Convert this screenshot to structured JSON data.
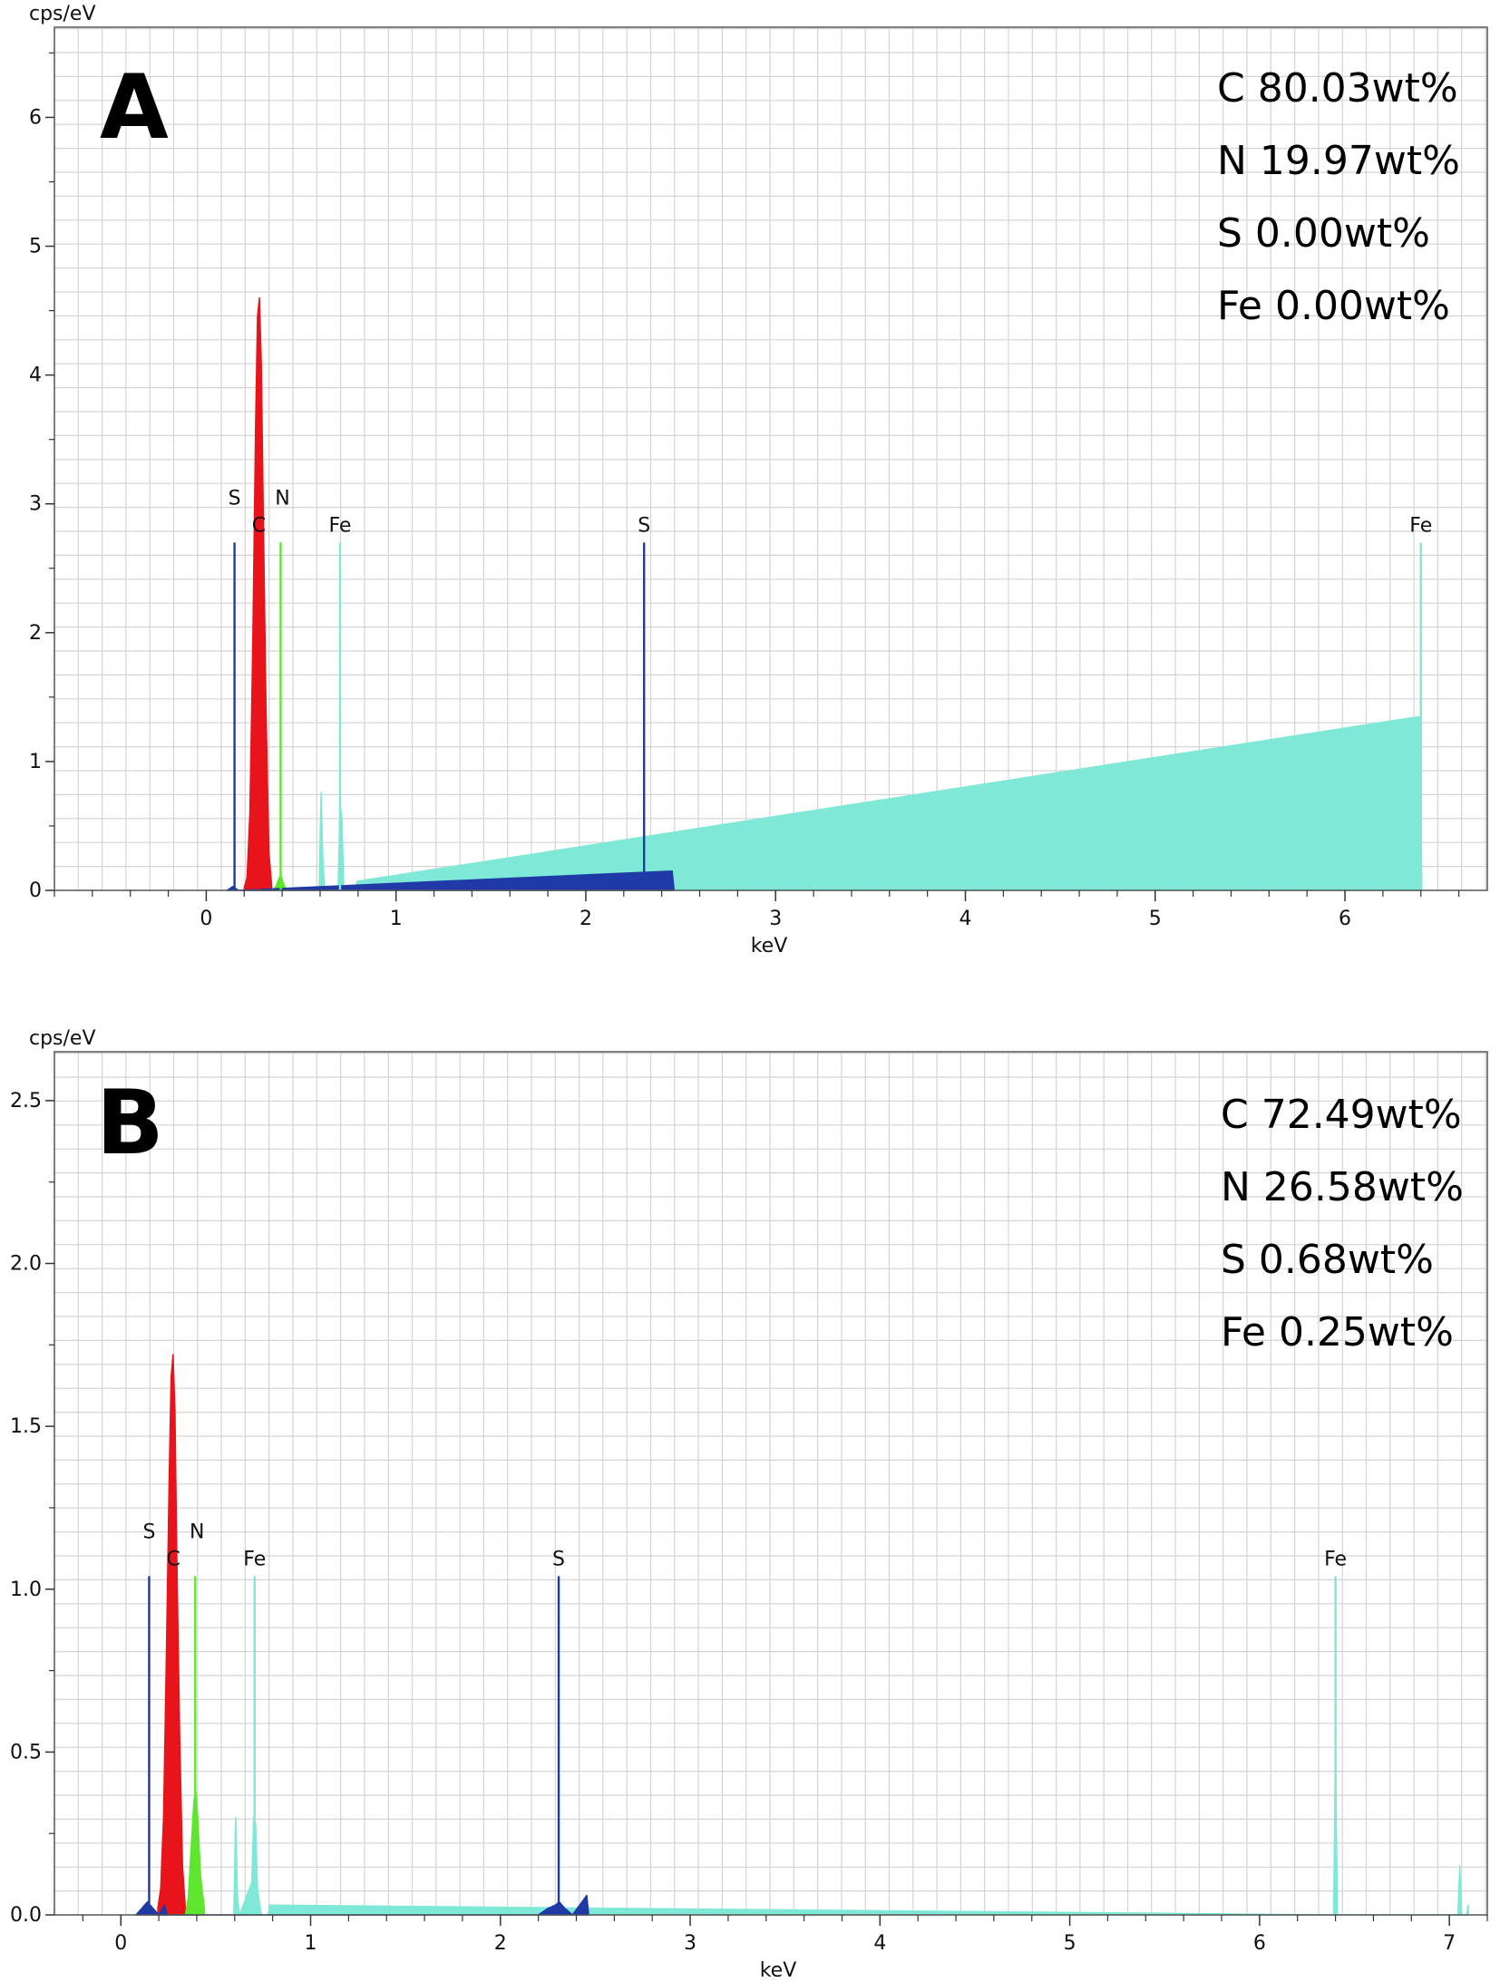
{
  "chart_data": [
    {
      "type": "line",
      "panel_label": "A",
      "ylabel": "cps/eV",
      "xlabel": "keV",
      "xlim": [
        -0.8,
        6.75
      ],
      "ylim": [
        0,
        6.7
      ],
      "xticks": [
        0,
        1,
        2,
        3,
        4,
        5,
        6
      ],
      "xtick_labels": [
        "0",
        "1",
        "2",
        "3",
        "4",
        "5",
        "6"
      ],
      "yticks": [
        0,
        1,
        2,
        3,
        4,
        5,
        6
      ],
      "ytick_labels": [
        "0",
        "1",
        "2",
        "3",
        "4",
        "5",
        "6"
      ],
      "grid": true,
      "composition": [
        "C 80.03wt%",
        "N 19.97wt%",
        "S 0.00wt%",
        "Fe 0.00wt%"
      ],
      "element_markers": [
        {
          "label": "S",
          "x": 0.149,
          "height": 2.7,
          "color": "#1f3aa6"
        },
        {
          "label": "C",
          "x": 0.277,
          "height": 2.7,
          "color": "#e8141b"
        },
        {
          "label": "N",
          "x": 0.392,
          "height": 2.7,
          "color": "#5ee62f"
        },
        {
          "label": "Fe",
          "x": 0.705,
          "height": 2.7,
          "color": "#7fe8d6"
        },
        {
          "label": "S",
          "x": 2.307,
          "height": 2.7,
          "color": "#1f3aa6"
        },
        {
          "label": "Fe",
          "x": 6.4,
          "height": 2.7,
          "color": "#7fe8d6"
        }
      ],
      "series": [
        {
          "name": "C",
          "color": "#e8141b",
          "x": [
            0.2,
            0.215,
            0.23,
            0.245,
            0.26,
            0.27,
            0.28,
            0.29,
            0.3,
            0.315,
            0.33,
            0.345
          ],
          "y": [
            0.02,
            0.1,
            0.6,
            1.9,
            3.6,
            4.45,
            4.6,
            4.1,
            3.0,
            1.4,
            0.3,
            0.03
          ]
        },
        {
          "name": "N",
          "color": "#5ee62f",
          "x": [
            0.355,
            0.37,
            0.385,
            0.395,
            0.405,
            0.42
          ],
          "y": [
            0.0,
            0.04,
            0.1,
            0.11,
            0.06,
            0.01
          ]
        },
        {
          "name": "Fe",
          "color": "#7fe8d6",
          "x": [
            0.595,
            0.605,
            0.615,
            0.625,
            0.695,
            0.705,
            0.715,
            0.725,
            0.785,
            0.795,
            6.395,
            6.405
          ],
          "y": [
            0.0,
            0.76,
            0.22,
            0.0,
            0.0,
            0.68,
            0.55,
            0.0,
            0.0,
            0.07,
            1.35,
            0.0
          ]
        },
        {
          "name": "S",
          "color": "#1f3aa6",
          "x": [
            0.11,
            0.14,
            0.17,
            2.455,
            2.465
          ],
          "y": [
            0.0,
            0.03,
            0.0,
            0.15,
            0.0
          ]
        }
      ]
    },
    {
      "type": "line",
      "panel_label": "B",
      "ylabel": "cps/eV",
      "xlabel": "keV",
      "xlim": [
        -0.35,
        7.2
      ],
      "ylim": [
        0,
        2.65
      ],
      "xticks": [
        0,
        1,
        2,
        3,
        4,
        5,
        6,
        7
      ],
      "xtick_labels": [
        "0",
        "1",
        "2",
        "3",
        "4",
        "5",
        "6",
        "7"
      ],
      "yticks": [
        0,
        0.5,
        1.0,
        1.5,
        2.0,
        2.5
      ],
      "ytick_labels": [
        "0.0",
        "0.5",
        "1.0",
        "1.5",
        "2.0",
        "2.5"
      ],
      "grid": true,
      "composition": [
        "C 72.49wt%",
        "N 26.58wt%",
        "S 0.68wt%",
        "Fe 0.25wt%"
      ],
      "element_markers": [
        {
          "label": "S",
          "x": 0.149,
          "height": 1.04,
          "color": "#1f3aa6"
        },
        {
          "label": "C",
          "x": 0.277,
          "height": 1.04,
          "color": "#e8141b"
        },
        {
          "label": "N",
          "x": 0.392,
          "height": 1.04,
          "color": "#5ee62f"
        },
        {
          "label": "Fe",
          "x": 0.705,
          "height": 1.04,
          "color": "#7fe8d6"
        },
        {
          "label": "S",
          "x": 2.307,
          "height": 1.04,
          "color": "#1f3aa6"
        },
        {
          "label": "Fe",
          "x": 6.4,
          "height": 1.04,
          "color": "#7fe8d6"
        }
      ],
      "series": [
        {
          "name": "C",
          "color": "#e8141b",
          "x": [
            0.195,
            0.21,
            0.225,
            0.24,
            0.255,
            0.265,
            0.275,
            0.285,
            0.295,
            0.31,
            0.325,
            0.34
          ],
          "y": [
            0.02,
            0.08,
            0.3,
            0.8,
            1.35,
            1.65,
            1.72,
            1.55,
            1.1,
            0.55,
            0.15,
            0.02
          ]
        },
        {
          "name": "N",
          "color": "#5ee62f",
          "x": [
            0.34,
            0.355,
            0.37,
            0.385,
            0.395,
            0.405,
            0.42,
            0.44
          ],
          "y": [
            0.0,
            0.05,
            0.2,
            0.35,
            0.38,
            0.3,
            0.12,
            0.02
          ]
        },
        {
          "name": "Fe",
          "color": "#7fe8d6",
          "x": [
            0.595,
            0.605,
            0.615,
            0.625,
            0.69,
            0.7,
            0.71,
            0.72,
            0.74,
            0.775,
            0.785,
            6.39,
            6.4,
            6.41,
            7.045,
            7.055,
            7.065,
            7.09,
            7.1
          ],
          "y": [
            0.0,
            0.3,
            0.05,
            0.0,
            0.1,
            0.3,
            0.28,
            0.08,
            0.0,
            0.0,
            0.03,
            0.0,
            0.52,
            0.0,
            0.0,
            0.15,
            0.0,
            0.0,
            0.03
          ]
        },
        {
          "name": "S",
          "color": "#1f3aa6",
          "x": [
            0.08,
            0.11,
            0.14,
            0.17,
            0.2,
            0.23,
            0.245,
            2.2,
            2.25,
            2.29,
            2.31,
            2.34,
            2.38,
            2.455,
            2.465
          ],
          "y": [
            0.0,
            0.02,
            0.04,
            0.02,
            0.0,
            0.03,
            0.0,
            0.0,
            0.02,
            0.03,
            0.04,
            0.02,
            0.0,
            0.06,
            0.0
          ]
        }
      ]
    }
  ]
}
